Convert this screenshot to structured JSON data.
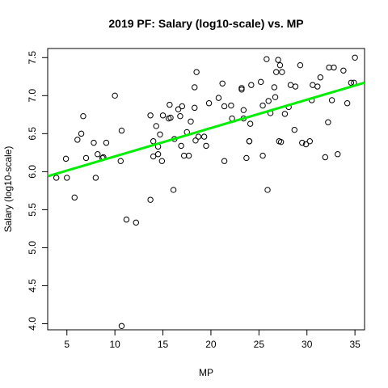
{
  "chart_data": {
    "type": "scatter",
    "title": "2019 PF: Salary (log10-scale) vs. MP",
    "xlabel": "MP",
    "ylabel": "Salary (log10-scale)",
    "xlim": [
      3,
      36
    ],
    "ylim": [
      3.92,
      7.62
    ],
    "x_ticks": [
      5,
      10,
      15,
      20,
      25,
      30,
      35
    ],
    "y_ticks": [
      4.0,
      4.5,
      5.0,
      5.5,
      6.0,
      6.5,
      7.0,
      7.5
    ],
    "x_tick_labels": [
      "5",
      "10",
      "15",
      "20",
      "25",
      "30",
      "35"
    ],
    "y_tick_labels": [
      "4.0",
      "4.5",
      "5.0",
      "5.5",
      "6.0",
      "6.5",
      "7.0",
      "7.5"
    ],
    "grid": false,
    "regression_line": {
      "x": [
        3,
        36
      ],
      "y": [
        5.94,
        7.17
      ],
      "color": "#00ee00"
    },
    "points": [
      [
        3.9,
        5.92
      ],
      [
        4.9,
        6.17
      ],
      [
        5.0,
        5.92
      ],
      [
        5.8,
        5.66
      ],
      [
        6.1,
        6.42
      ],
      [
        6.5,
        6.5
      ],
      [
        6.7,
        6.73
      ],
      [
        7.0,
        6.18
      ],
      [
        7.8,
        6.38
      ],
      [
        8.0,
        5.92
      ],
      [
        8.2,
        6.23
      ],
      [
        8.7,
        6.18
      ],
      [
        8.8,
        6.19
      ],
      [
        9.1,
        6.38
      ],
      [
        10.0,
        7.0
      ],
      [
        10.6,
        6.14
      ],
      [
        10.7,
        6.54
      ],
      [
        10.7,
        3.97
      ],
      [
        11.2,
        5.37
      ],
      [
        12.2,
        5.33
      ],
      [
        13.7,
        6.74
      ],
      [
        13.7,
        5.63
      ],
      [
        14.0,
        6.2
      ],
      [
        14.0,
        6.4
      ],
      [
        14.3,
        6.6
      ],
      [
        14.5,
        6.33
      ],
      [
        14.5,
        6.23
      ],
      [
        14.7,
        6.49
      ],
      [
        14.9,
        6.14
      ],
      [
        15.0,
        6.74
      ],
      [
        15.6,
        6.7
      ],
      [
        15.7,
        6.88
      ],
      [
        15.8,
        6.71
      ],
      [
        16.1,
        5.76
      ],
      [
        16.2,
        6.43
      ],
      [
        16.6,
        6.82
      ],
      [
        16.8,
        6.73
      ],
      [
        16.9,
        6.34
      ],
      [
        17.0,
        6.86
      ],
      [
        17.2,
        6.21
      ],
      [
        17.5,
        6.52
      ],
      [
        17.7,
        6.21
      ],
      [
        17.9,
        6.66
      ],
      [
        18.3,
        6.84
      ],
      [
        18.3,
        7.11
      ],
      [
        18.4,
        6.41
      ],
      [
        18.5,
        7.31
      ],
      [
        18.7,
        6.46
      ],
      [
        19.3,
        6.46
      ],
      [
        19.5,
        6.34
      ],
      [
        19.8,
        6.9
      ],
      [
        20.8,
        6.97
      ],
      [
        21.2,
        7.16
      ],
      [
        21.4,
        6.14
      ],
      [
        21.4,
        6.86
      ],
      [
        22.1,
        6.87
      ],
      [
        22.2,
        6.7
      ],
      [
        23.2,
        7.08
      ],
      [
        23.2,
        7.1
      ],
      [
        23.4,
        6.81
      ],
      [
        23.4,
        6.7
      ],
      [
        23.7,
        6.18
      ],
      [
        24.0,
        6.4
      ],
      [
        24.0,
        6.4
      ],
      [
        24.1,
        6.63
      ],
      [
        24.2,
        7.14
      ],
      [
        25.2,
        7.18
      ],
      [
        25.4,
        6.87
      ],
      [
        25.4,
        6.21
      ],
      [
        25.8,
        7.48
      ],
      [
        25.9,
        5.76
      ],
      [
        26.0,
        6.93
      ],
      [
        26.2,
        6.77
      ],
      [
        26.6,
        7.11
      ],
      [
        26.7,
        6.98
      ],
      [
        26.8,
        7.31
      ],
      [
        27.0,
        7.47
      ],
      [
        27.1,
        6.4
      ],
      [
        27.2,
        7.4
      ],
      [
        27.3,
        6.39
      ],
      [
        27.4,
        7.31
      ],
      [
        27.7,
        6.76
      ],
      [
        28.1,
        6.85
      ],
      [
        28.3,
        7.14
      ],
      [
        28.7,
        6.55
      ],
      [
        28.8,
        7.12
      ],
      [
        29.3,
        7.4
      ],
      [
        29.5,
        6.38
      ],
      [
        29.9,
        6.36
      ],
      [
        30.3,
        6.4
      ],
      [
        30.5,
        6.94
      ],
      [
        30.6,
        7.14
      ],
      [
        31.1,
        7.12
      ],
      [
        31.4,
        7.24
      ],
      [
        31.9,
        6.19
      ],
      [
        32.2,
        6.65
      ],
      [
        32.3,
        7.37
      ],
      [
        32.6,
        6.94
      ],
      [
        32.8,
        7.37
      ],
      [
        33.2,
        6.23
      ],
      [
        33.8,
        7.33
      ],
      [
        34.2,
        6.9
      ],
      [
        34.6,
        7.17
      ],
      [
        34.9,
        7.17
      ],
      [
        35.0,
        7.5
      ]
    ]
  }
}
